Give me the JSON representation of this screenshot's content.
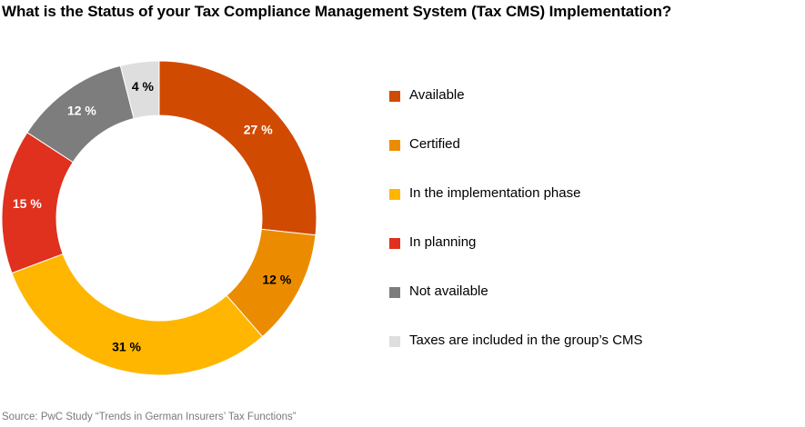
{
  "title": "What is the Status of your Tax Compliance Management System (Tax CMS) Implementation?",
  "source": "Source: PwC Study “Trends in German Insurers’ Tax Functions”",
  "chart_data": {
    "type": "pie",
    "variant": "donut",
    "title": "What is the Status of your Tax Compliance Management System (Tax CMS) Implementation?",
    "legend_position": "right",
    "slices": [
      {
        "label": "Available",
        "value": 27,
        "display": "27 %",
        "color": "#d04a02",
        "label_color": "#ffffff"
      },
      {
        "label": "Certified",
        "value": 12,
        "display": "12 %",
        "color": "#eb8c00",
        "label_color": "#000000"
      },
      {
        "label": "In the implementation phase",
        "value": 31,
        "display": "31 %",
        "color": "#ffb600",
        "label_color": "#000000"
      },
      {
        "label": "In planning",
        "value": 15,
        "display": "15 %",
        "color": "#e0301e",
        "label_color": "#ffffff"
      },
      {
        "label": "Not available",
        "value": 12,
        "display": "12 %",
        "color": "#7d7d7d",
        "label_color": "#ffffff"
      },
      {
        "label": "Taxes are included in the group’s CMS",
        "value": 4,
        "display": "4 %",
        "color": "#dedede",
        "label_color": "#000000"
      }
    ]
  }
}
